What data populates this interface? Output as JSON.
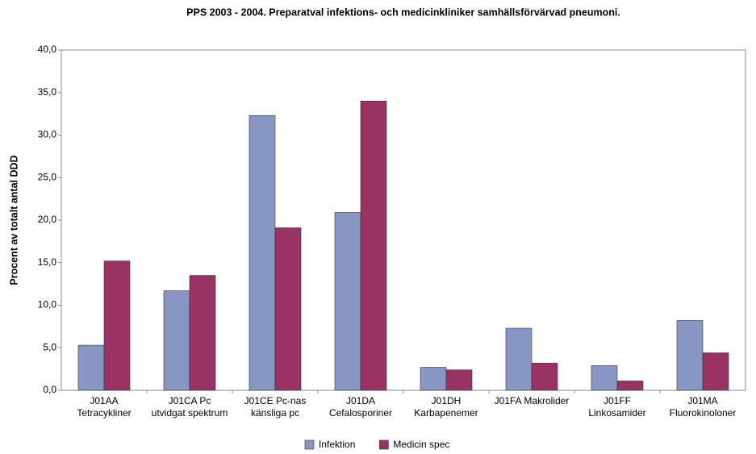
{
  "chart_data": {
    "type": "bar",
    "title": "PPS 2003 - 2004. Preparatval infektions- och medicinkliniker samhällsförvärvad pneumoni.",
    "y_label": "Procent av totalt antal DDD",
    "categories": [
      [
        "J01AA",
        "Tetracykliner"
      ],
      [
        "J01CA Pc",
        "utvidgat spektrum"
      ],
      [
        "J01CE Pc-nas",
        "känsliga pc"
      ],
      [
        "J01DA",
        "Cefalosporiner"
      ],
      [
        "J01DH",
        "Karbapenemer"
      ],
      [
        "J01FA Makrolider"
      ],
      [
        "J01FF",
        "Linkosamider"
      ],
      [
        "J01MA",
        "Fluorokinoloner"
      ]
    ],
    "series": [
      {
        "name": "Infektion",
        "color": "#8896c4",
        "values": [
          5.3,
          11.7,
          32.3,
          20.9,
          2.7,
          7.3,
          2.9,
          8.2
        ]
      },
      {
        "name": "Medicin spec",
        "color": "#993366",
        "values": [
          15.2,
          13.5,
          19.1,
          34.0,
          2.4,
          3.2,
          1.1,
          4.4
        ]
      }
    ],
    "ylim": [
      0,
      40
    ],
    "yticks": [
      {
        "value": 0,
        "label": "0,0"
      },
      {
        "value": 5,
        "label": "5,0"
      },
      {
        "value": 10,
        "label": "10,0"
      },
      {
        "value": 15,
        "label": "15,0"
      },
      {
        "value": 20,
        "label": "20,0"
      },
      {
        "value": 25,
        "label": "25,0"
      },
      {
        "value": 30,
        "label": "30,0"
      },
      {
        "value": 35,
        "label": "35,0"
      },
      {
        "value": 40,
        "label": "40,0"
      }
    ],
    "grid": false,
    "legend": "bottom"
  }
}
